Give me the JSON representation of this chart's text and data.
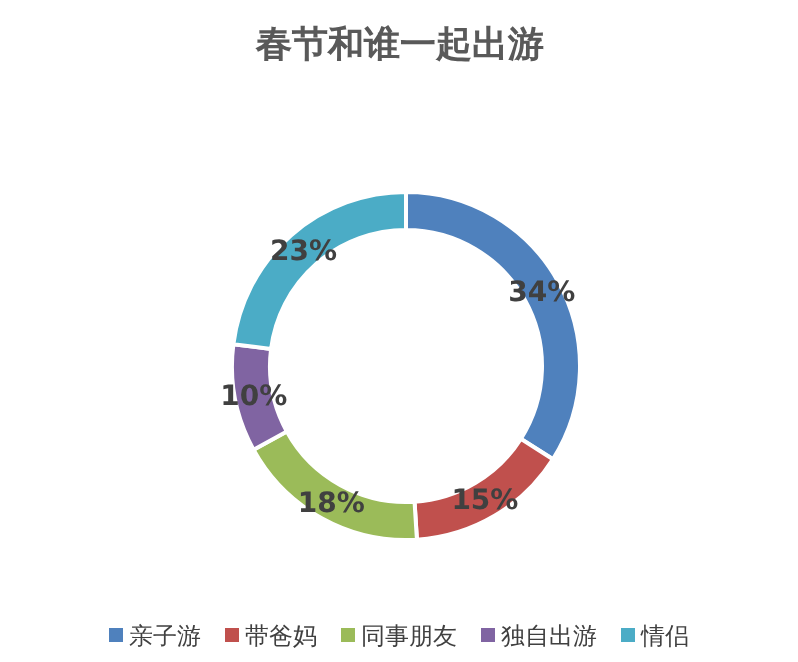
{
  "chart_data": {
    "type": "donut",
    "title": "春节和谁一起出游",
    "categories": [
      "亲子游",
      "带爸妈",
      "同事朋友",
      "独自出游",
      "情侣"
    ],
    "values": [
      34,
      15,
      18,
      10,
      23
    ],
    "value_labels": [
      "34%",
      "15%",
      "18%",
      "10%",
      "23%"
    ],
    "colors": [
      "#4f81bd",
      "#c0504d",
      "#9bbb59",
      "#8064a2",
      "#4bacc6"
    ],
    "legend": "bottom"
  }
}
